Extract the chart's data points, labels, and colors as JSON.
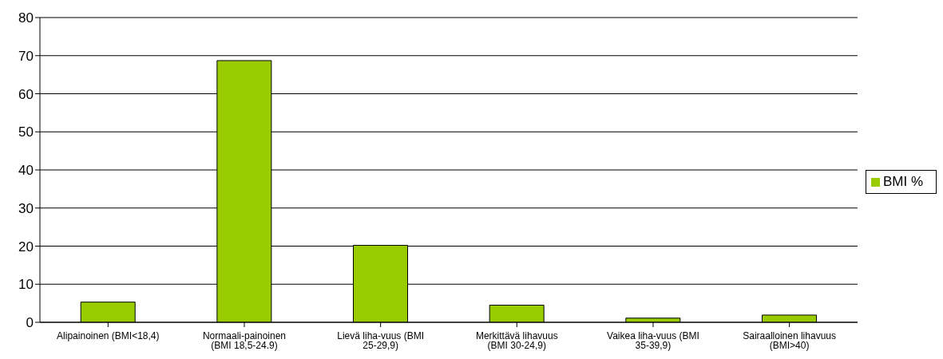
{
  "chart_data": {
    "type": "bar",
    "categories": [
      "Alipainoinen (BMI<18,4)",
      "Normaali-painoinen (BMI 18,5-24.9)",
      "Lievä liha-vuus (BMI 25-29,9)",
      "Merkittävä lihavuus (BMI 30-24,9)",
      "Vaikea liha-vuus (BMI 35-39,9)",
      "Sairaalloinen lihavuus (BMI>40)"
    ],
    "series": [
      {
        "name": "BMI %",
        "color": "#99cc00",
        "values": [
          5.3,
          68.7,
          20.2,
          4.5,
          1.1,
          1.9
        ]
      }
    ],
    "ylim": [
      0,
      80
    ],
    "yticks": [
      0,
      10,
      20,
      30,
      40,
      50,
      60,
      70,
      80
    ],
    "grid": "y",
    "legend": "right"
  }
}
